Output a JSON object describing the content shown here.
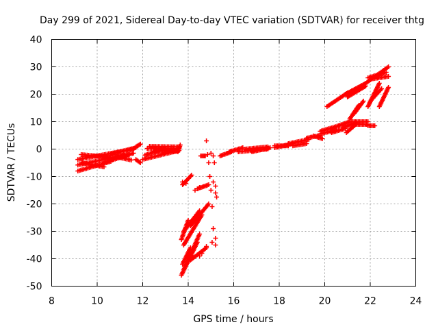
{
  "chart_data": {
    "type": "scatter",
    "title": "Day 299 of 2021, Sidereal Day-to-day VTEC variation (SDTVAR) for receiver thtg",
    "xlabel": "GPS time / hours",
    "ylabel": "SDTVAR / TECUs",
    "xlim": [
      8,
      24
    ],
    "ylim": [
      -50,
      40
    ],
    "xticks": [
      8,
      10,
      12,
      14,
      16,
      18,
      20,
      22,
      24
    ],
    "yticks": [
      -50,
      -40,
      -30,
      -20,
      -10,
      0,
      10,
      20,
      30,
      40
    ],
    "grid": true,
    "marker": "+",
    "color": "#ff0000",
    "segments": [
      {
        "x0": 9.15,
        "y0": -8.0,
        "x1": 10.6,
        "y1": -4.5
      },
      {
        "x0": 9.15,
        "y0": -5.8,
        "x1": 11.2,
        "y1": -2.2
      },
      {
        "x0": 9.15,
        "y0": -3.8,
        "x1": 11.6,
        "y1": 0.0
      },
      {
        "x0": 9.3,
        "y0": -2.0,
        "x1": 10.6,
        "y1": -3.0
      },
      {
        "x0": 9.3,
        "y0": -5.0,
        "x1": 10.3,
        "y1": -6.5
      },
      {
        "x0": 10.3,
        "y0": -5.0,
        "x1": 11.4,
        "y1": -2.0
      },
      {
        "x0": 10.5,
        "y0": -3.8,
        "x1": 11.6,
        "y1": -1.5
      },
      {
        "x0": 10.6,
        "y0": -1.8,
        "x1": 11.7,
        "y1": 0.5
      },
      {
        "x0": 10.8,
        "y0": -2.8,
        "x1": 11.5,
        "y1": -4.0
      },
      {
        "x0": 11.7,
        "y0": -3.8,
        "x1": 11.9,
        "y1": -5.0
      },
      {
        "x0": 11.7,
        "y0": 0.8,
        "x1": 11.9,
        "y1": 1.8
      },
      {
        "x0": 12.0,
        "y0": -3.8,
        "x1": 13.6,
        "y1": -0.5
      },
      {
        "x0": 12.1,
        "y0": -2.2,
        "x1": 13.0,
        "y1": 0.0
      },
      {
        "x0": 12.2,
        "y0": 0.2,
        "x1": 13.6,
        "y1": 0.2
      },
      {
        "x0": 12.3,
        "y0": 1.0,
        "x1": 13.6,
        "y1": 0.8
      },
      {
        "x0": 12.5,
        "y0": -0.8,
        "x1": 13.5,
        "y1": -0.8
      },
      {
        "x0": 13.55,
        "y0": -1.0,
        "x1": 13.65,
        "y1": 1.5
      },
      {
        "x0": 13.75,
        "y0": -13.0,
        "x1": 14.15,
        "y1": -9.5
      },
      {
        "x0": 13.7,
        "y0": -33.0,
        "x1": 14.0,
        "y1": -26.0
      },
      {
        "x0": 13.8,
        "y0": -30.0,
        "x1": 14.5,
        "y1": -22.5
      },
      {
        "x0": 13.8,
        "y0": -35.0,
        "x1": 14.6,
        "y1": -24.0
      },
      {
        "x0": 14.1,
        "y0": -28.0,
        "x1": 14.9,
        "y1": -20.0
      },
      {
        "x0": 13.7,
        "y0": -46.0,
        "x1": 14.4,
        "y1": -34.0
      },
      {
        "x0": 13.8,
        "y0": -44.0,
        "x1": 14.5,
        "y1": -31.0
      },
      {
        "x0": 13.75,
        "y0": -42.0,
        "x1": 14.1,
        "y1": -36.0
      },
      {
        "x0": 14.1,
        "y0": -40.5,
        "x1": 14.8,
        "y1": -36.0
      },
      {
        "x0": 14.4,
        "y0": -14.5,
        "x1": 14.9,
        "y1": -13.0
      },
      {
        "x0": 14.55,
        "y0": -2.5,
        "x1": 14.75,
        "y1": -2.5
      },
      {
        "x0": 15.4,
        "y0": -2.5,
        "x1": 15.9,
        "y1": -1.0
      },
      {
        "x0": 15.8,
        "y0": -1.0,
        "x1": 16.4,
        "y1": 0.5
      },
      {
        "x0": 16.2,
        "y0": -1.0,
        "x1": 17.5,
        "y1": 0.0
      },
      {
        "x0": 16.5,
        "y0": 0.0,
        "x1": 17.5,
        "y1": 0.8
      },
      {
        "x0": 16.8,
        "y0": -1.0,
        "x1": 17.6,
        "y1": 0.5
      },
      {
        "x0": 17.8,
        "y0": 0.5,
        "x1": 18.6,
        "y1": 2.0
      },
      {
        "x0": 17.8,
        "y0": 1.2,
        "x1": 18.4,
        "y1": 1.2
      },
      {
        "x0": 18.4,
        "y0": 2.0,
        "x1": 19.3,
        "y1": 3.5
      },
      {
        "x0": 18.6,
        "y0": 1.2,
        "x1": 19.2,
        "y1": 2.0
      },
      {
        "x0": 19.2,
        "y0": 4.0,
        "x1": 19.8,
        "y1": 5.0
      },
      {
        "x0": 19.5,
        "y0": 4.8,
        "x1": 19.9,
        "y1": 3.8
      },
      {
        "x0": 19.8,
        "y0": 6.5,
        "x1": 20.6,
        "y1": 8.5
      },
      {
        "x0": 19.8,
        "y0": 5.5,
        "x1": 20.5,
        "y1": 7.0
      },
      {
        "x0": 20.3,
        "y0": 6.0,
        "x1": 20.9,
        "y1": 7.5
      },
      {
        "x0": 20.6,
        "y0": 8.5,
        "x1": 21.1,
        "y1": 10.0
      },
      {
        "x0": 20.8,
        "y0": 7.8,
        "x1": 21.4,
        "y1": 9.8
      },
      {
        "x0": 21.1,
        "y0": 10.0,
        "x1": 21.9,
        "y1": 10.0
      },
      {
        "x0": 21.3,
        "y0": 9.0,
        "x1": 21.9,
        "y1": 9.0
      },
      {
        "x0": 20.95,
        "y0": 6.0,
        "x1": 21.3,
        "y1": 8.5
      },
      {
        "x0": 21.9,
        "y0": 8.5,
        "x1": 22.2,
        "y1": 8.5
      },
      {
        "x0": 20.1,
        "y0": 15.5,
        "x1": 21.0,
        "y1": 20.5
      },
      {
        "x0": 20.9,
        "y0": 20.0,
        "x1": 21.8,
        "y1": 24.0
      },
      {
        "x0": 21.0,
        "y0": 19.0,
        "x1": 21.8,
        "y1": 23.0
      },
      {
        "x0": 21.8,
        "y0": 24.0,
        "x1": 22.8,
        "y1": 30.0
      },
      {
        "x0": 21.9,
        "y0": 26.0,
        "x1": 22.7,
        "y1": 28.0
      },
      {
        "x0": 22.0,
        "y0": 25.5,
        "x1": 22.8,
        "y1": 26.5
      },
      {
        "x0": 21.1,
        "y0": 11.0,
        "x1": 21.5,
        "y1": 16.0
      },
      {
        "x0": 21.3,
        "y0": 13.0,
        "x1": 21.7,
        "y1": 17.5
      },
      {
        "x0": 21.9,
        "y0": 15.5,
        "x1": 22.4,
        "y1": 24.0
      },
      {
        "x0": 22.0,
        "y0": 17.5,
        "x1": 22.5,
        "y1": 22.0
      },
      {
        "x0": 22.4,
        "y0": 15.5,
        "x1": 22.8,
        "y1": 22.5
      }
    ],
    "points": [
      [
        14.8,
        3.0
      ],
      [
        14.85,
        -2.0
      ],
      [
        15.0,
        -1.5
      ],
      [
        15.1,
        -2.5
      ],
      [
        14.9,
        -5.0
      ],
      [
        15.15,
        -5.0
      ],
      [
        14.3,
        -15.0
      ],
      [
        14.5,
        -14.0
      ],
      [
        14.95,
        -10.0
      ],
      [
        15.1,
        -12.0
      ],
      [
        15.2,
        -13.5
      ],
      [
        15.0,
        -15.0
      ],
      [
        15.2,
        -16.0
      ],
      [
        15.25,
        -17.5
      ],
      [
        15.05,
        -21.0
      ],
      [
        15.1,
        -29.0
      ],
      [
        15.2,
        -32.5
      ],
      [
        15.05,
        -34.0
      ],
      [
        15.2,
        -35.0
      ],
      [
        14.8,
        -35.5
      ],
      [
        14.6,
        -38.0
      ],
      [
        14.5,
        -39.0
      ],
      [
        13.75,
        -12.0
      ],
      [
        13.9,
        -12.5
      ]
    ]
  }
}
